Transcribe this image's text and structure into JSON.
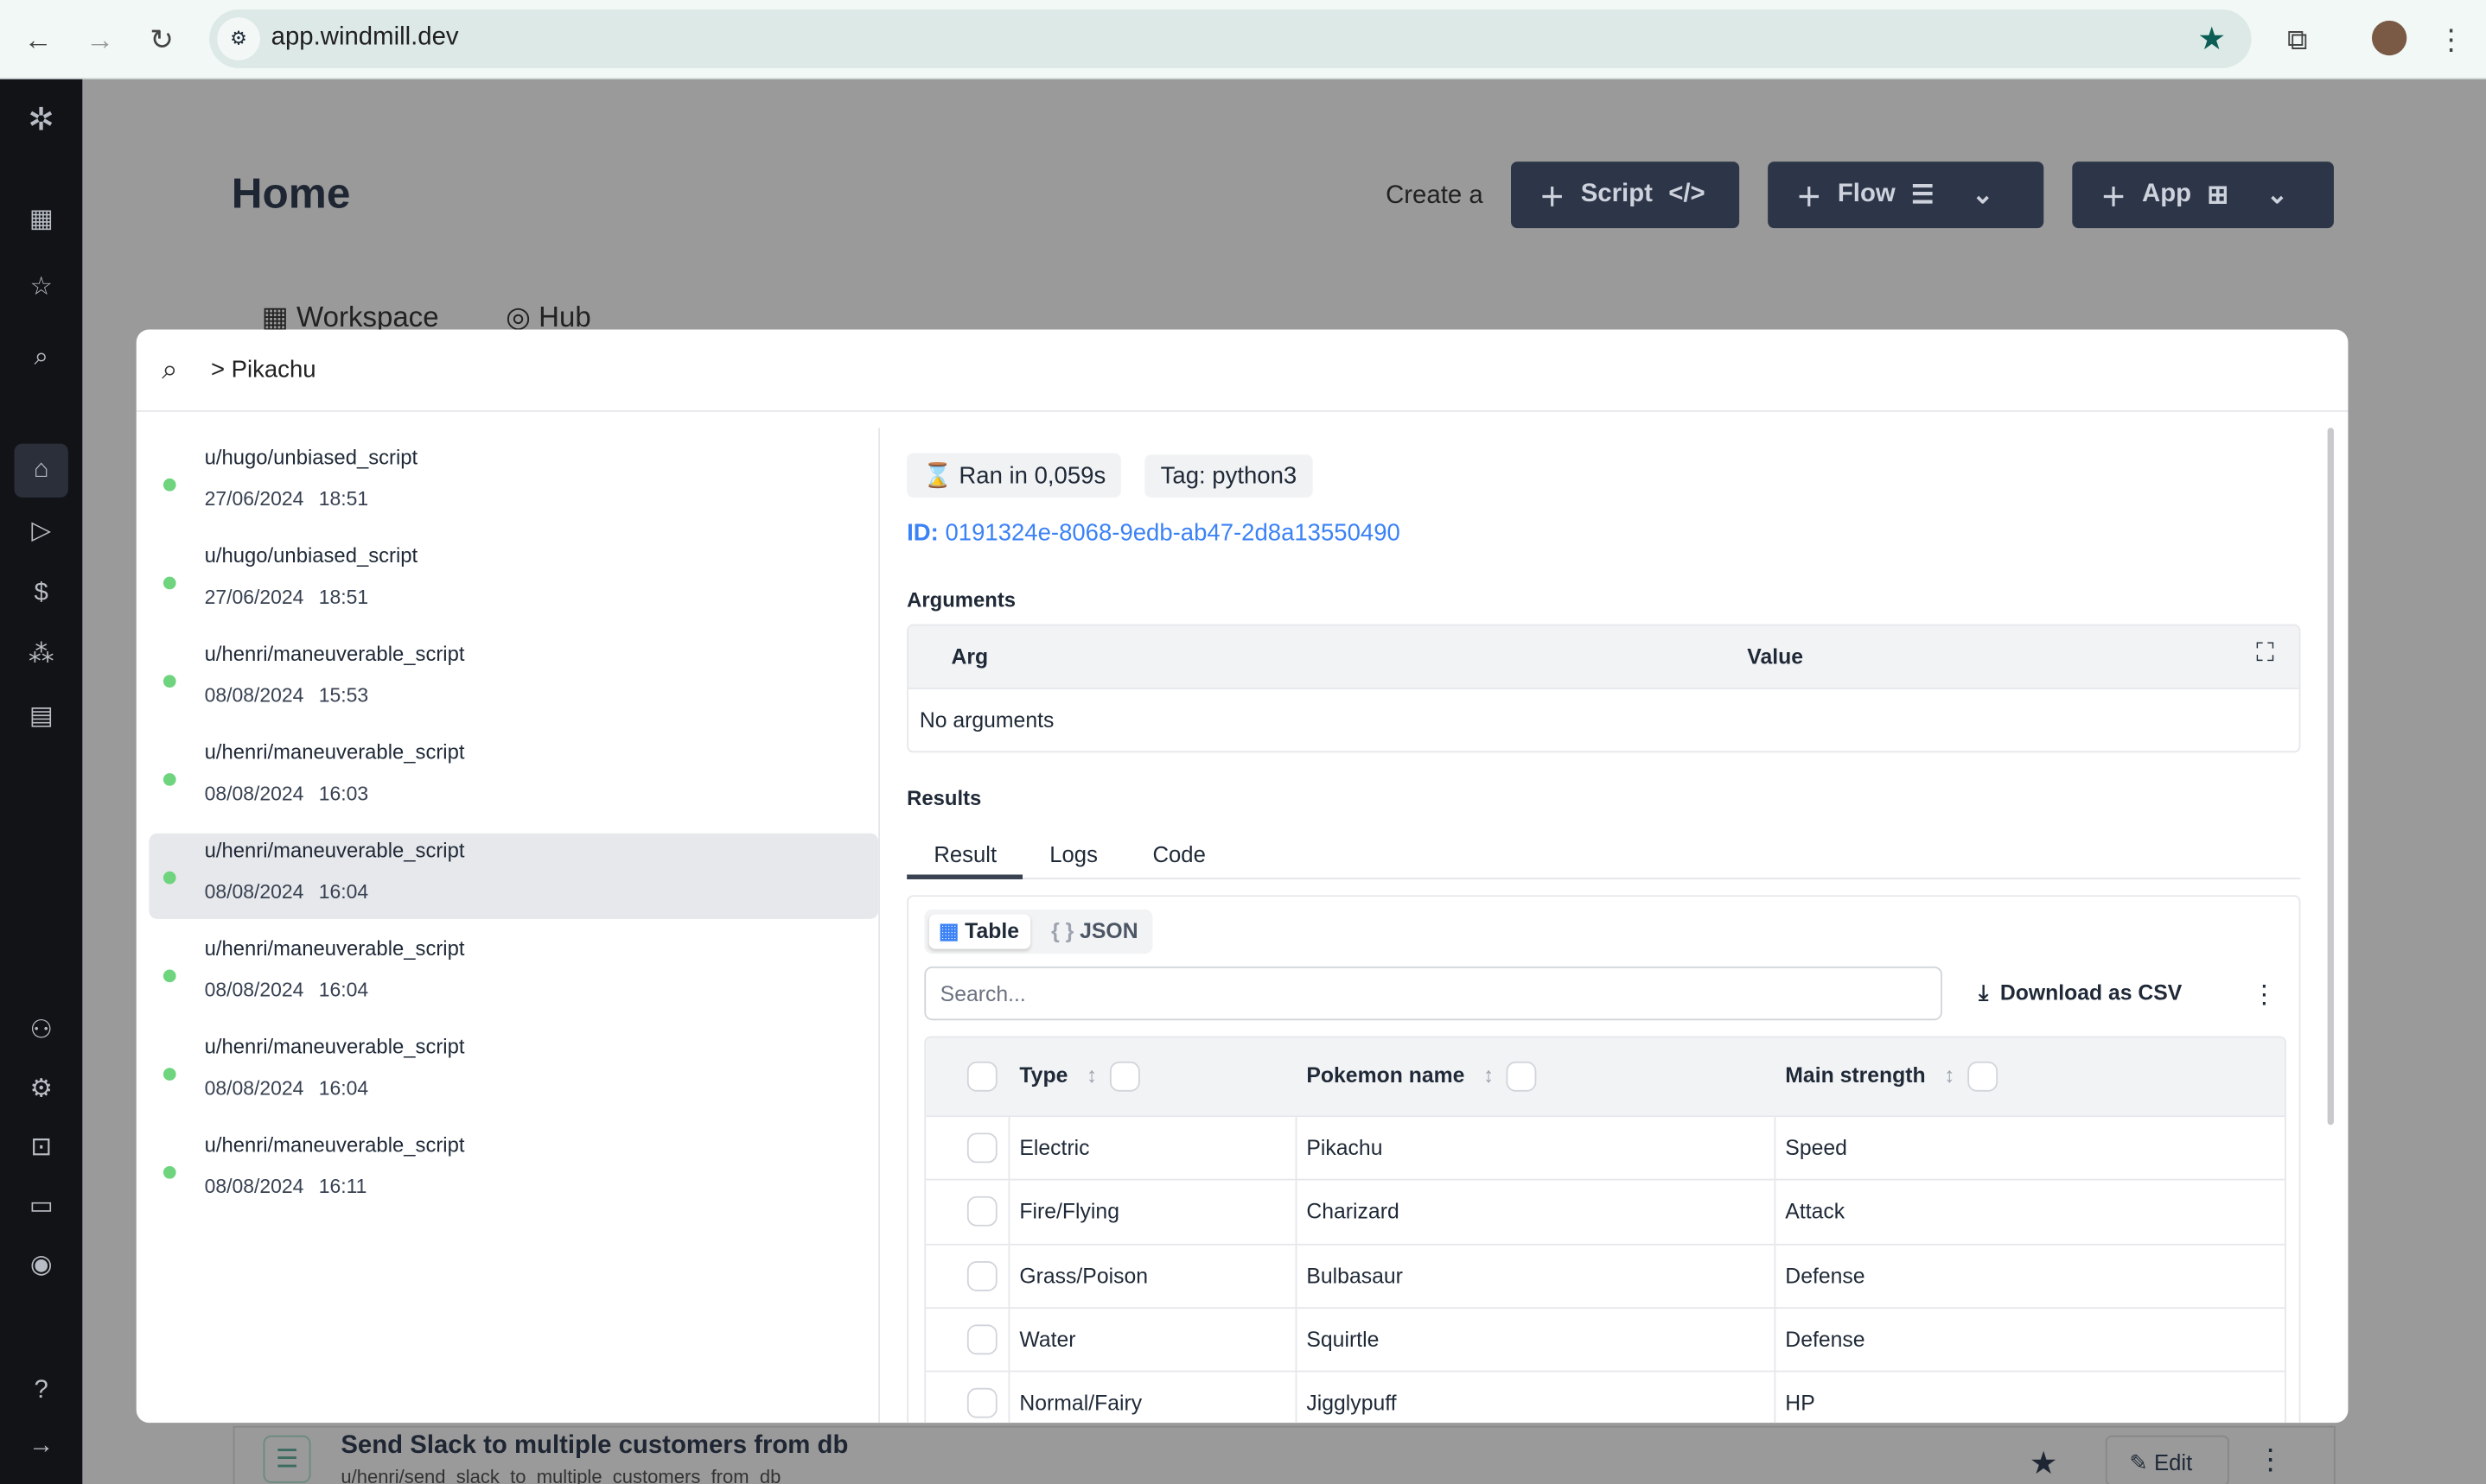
{
  "browser": {
    "url": "app.windmill.dev"
  },
  "page": {
    "title": "Home",
    "create_label": "Create a",
    "buttons": {
      "script": "Script",
      "flow": "Flow",
      "app": "App"
    },
    "tabs": [
      "Workspace",
      "Hub"
    ]
  },
  "search": {
    "query": "> Pikachu"
  },
  "runs": [
    {
      "path": "u/hugo/unbiased_script",
      "date": "27/06/2024 18:51"
    },
    {
      "path": "u/hugo/unbiased_script",
      "date": "27/06/2024 18:51"
    },
    {
      "path": "u/henri/maneuverable_script",
      "date": "08/08/2024 15:53"
    },
    {
      "path": "u/henri/maneuverable_script",
      "date": "08/08/2024 16:03"
    },
    {
      "path": "u/henri/maneuverable_script",
      "date": "08/08/2024 16:04"
    },
    {
      "path": "u/henri/maneuverable_script",
      "date": "08/08/2024 16:04"
    },
    {
      "path": "u/henri/maneuverable_script",
      "date": "08/08/2024 16:04"
    },
    {
      "path": "u/henri/maneuverable_script",
      "date": "08/08/2024 16:11"
    }
  ],
  "detail": {
    "ran": "Ran in 0,059s",
    "tag": "Tag: python3",
    "id_label": "ID:",
    "id": "0191324e-8068-9edb-ab47-2d8a13550490",
    "arguments_title": "Arguments",
    "arg_col": "Arg",
    "value_col": "Value",
    "no_args": "No arguments",
    "results_title": "Results",
    "tabs": [
      "Result",
      "Logs",
      "Code"
    ],
    "view_table": "Table",
    "view_json": "JSON",
    "search_placeholder": "Search...",
    "download": "Download as CSV",
    "columns": [
      "Type",
      "Pokemon name",
      "Main strength"
    ],
    "rows": [
      [
        "Electric",
        "Pikachu",
        "Speed"
      ],
      [
        "Fire/Flying",
        "Charizard",
        "Attack"
      ],
      [
        "Grass/Poison",
        "Bulbasaur",
        "Defense"
      ],
      [
        "Water",
        "Squirtle",
        "Defense"
      ],
      [
        "Normal/Fairy",
        "Jigglypuff",
        "HP"
      ]
    ]
  },
  "background_item": {
    "title": "Send Slack to multiple customers from db",
    "path": "u/henri/send_slack_to_multiple_customers_from_db",
    "edit": "Edit"
  },
  "colors": {
    "accent": "#3b82f6",
    "sidebar": "#121316",
    "button": "#2d3648",
    "status_ok": "#6ed47d"
  }
}
